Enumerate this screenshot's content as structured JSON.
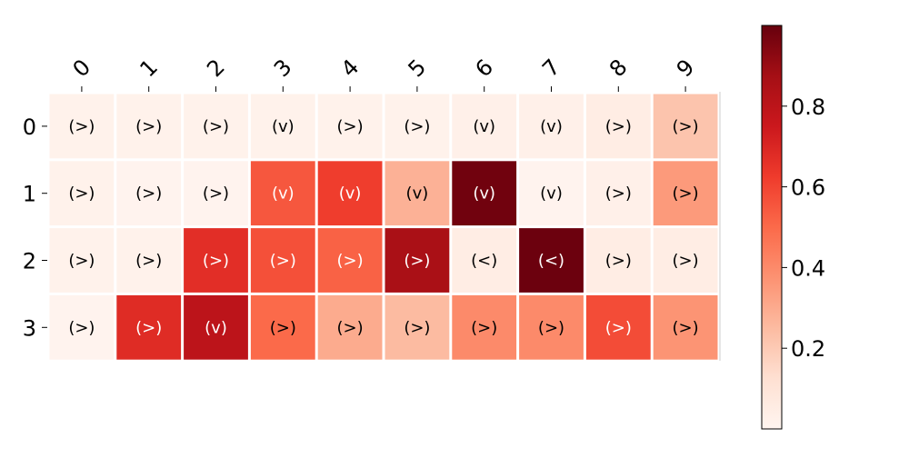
{
  "chart_data": {
    "type": "heatmap",
    "title": "",
    "xlabel": "",
    "ylabel": "",
    "x_categories": [
      "0",
      "1",
      "2",
      "3",
      "4",
      "5",
      "6",
      "7",
      "8",
      "9"
    ],
    "y_categories": [
      "0",
      "1",
      "2",
      "3"
    ],
    "values": [
      [
        0.02,
        0.02,
        0.02,
        0.02,
        0.02,
        0.02,
        0.03,
        0.03,
        0.05,
        0.22
      ],
      [
        0.02,
        0.01,
        0.01,
        0.55,
        0.62,
        0.28,
        0.98,
        0.01,
        0.03,
        0.35
      ],
      [
        0.02,
        0.02,
        0.67,
        0.57,
        0.52,
        0.86,
        0.05,
        0.99,
        0.05,
        0.05
      ],
      [
        0.01,
        0.68,
        0.8,
        0.5,
        0.3,
        0.25,
        0.4,
        0.4,
        0.58,
        0.37
      ]
    ],
    "annotations": [
      [
        "(>)",
        "(>)",
        "(>)",
        "(v)",
        "(>)",
        "(>)",
        "(v)",
        "(v)",
        "(>)",
        "(>)"
      ],
      [
        "(>)",
        "(>)",
        "(>)",
        "(v)",
        "(v)",
        "(v)",
        "(v)",
        "(v)",
        "(>)",
        "(>)"
      ],
      [
        "(>)",
        "(>)",
        "(>)",
        "(>)",
        "(>)",
        "(>)",
        "(<)",
        "(<)",
        "(>)",
        "(>)"
      ],
      [
        "(>)",
        "(>)",
        "(v)",
        "(>)",
        "(>)",
        "(>)",
        "(>)",
        "(>)",
        "(>)",
        "(>)"
      ]
    ],
    "colormap": "Reds",
    "vmin": 0.0,
    "vmax": 1.0,
    "colorbar_ticks": [
      "0.2",
      "0.4",
      "0.6",
      "0.8"
    ],
    "colorbar_tick_values": [
      0.2,
      0.4,
      0.6,
      0.8
    ],
    "x_tick_position": "top",
    "grid": false,
    "legend": "colorbar-right"
  }
}
